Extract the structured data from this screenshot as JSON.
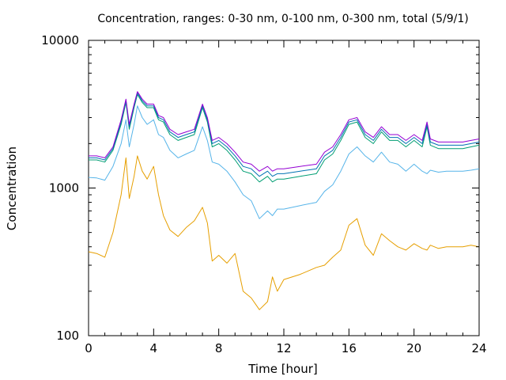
{
  "chart_data": {
    "type": "line",
    "title": "Concentration, ranges: 0-30 nm, 0-100 nm, 0-300 nm, total (5/9/1)",
    "xlabel": "Time [hour]",
    "ylabel": "Concentration",
    "xlim": [
      0,
      24
    ],
    "ylim": [
      100,
      10000
    ],
    "y_scale": "log",
    "grid": false,
    "x_ticks": [
      0,
      4,
      8,
      12,
      16,
      20,
      24
    ],
    "x_tick_labels": [
      "0",
      "4",
      "8",
      "12",
      "16",
      "20",
      "24"
    ],
    "y_ticks": [
      100,
      1000,
      10000
    ],
    "y_tick_labels": [
      "100",
      "1000",
      "10000"
    ],
    "x": [
      0.0,
      0.5,
      1.0,
      1.5,
      2.0,
      2.3,
      2.5,
      2.8,
      3.0,
      3.3,
      3.6,
      4.0,
      4.3,
      4.6,
      5.0,
      5.5,
      6.0,
      6.5,
      7.0,
      7.3,
      7.6,
      8.0,
      8.5,
      9.0,
      9.5,
      10.0,
      10.5,
      11.0,
      11.3,
      11.6,
      12.0,
      13.0,
      14.0,
      14.5,
      15.0,
      15.5,
      16.0,
      16.5,
      17.0,
      17.5,
      18.0,
      18.5,
      19.0,
      19.5,
      20.0,
      20.5,
      20.8,
      21.0,
      21.5,
      22.0,
      23.0,
      23.5,
      24.0
    ],
    "series": [
      {
        "color": "#e69f00",
        "values": [
          370,
          360,
          340,
          500,
          900,
          1600,
          850,
          1200,
          1650,
          1300,
          1150,
          1400,
          900,
          650,
          520,
          470,
          540,
          600,
          740,
          580,
          320,
          350,
          310,
          360,
          200,
          180,
          150,
          170,
          250,
          200,
          240,
          260,
          290,
          300,
          340,
          380,
          560,
          620,
          410,
          350,
          490,
          440,
          400,
          380,
          420,
          390,
          380,
          410,
          390,
          400,
          400,
          410,
          400
        ]
      },
      {
        "color": "#56b4e9",
        "values": [
          1180,
          1170,
          1130,
          1400,
          2000,
          2900,
          1900,
          2700,
          3600,
          3000,
          2700,
          2900,
          2300,
          2200,
          1800,
          1600,
          1700,
          1800,
          2600,
          2100,
          1500,
          1450,
          1300,
          1100,
          900,
          820,
          620,
          700,
          650,
          720,
          720,
          760,
          800,
          950,
          1050,
          1300,
          1700,
          1900,
          1650,
          1500,
          1750,
          1500,
          1450,
          1300,
          1450,
          1300,
          1250,
          1320,
          1280,
          1300,
          1300,
          1320,
          1350
        ]
      },
      {
        "color": "#009e73",
        "values": [
          1550,
          1550,
          1500,
          1800,
          2700,
          3800,
          2500,
          3500,
          4300,
          3800,
          3500,
          3500,
          2900,
          2800,
          2300,
          2100,
          2200,
          2300,
          3500,
          2800,
          1900,
          2000,
          1800,
          1550,
          1300,
          1250,
          1100,
          1200,
          1100,
          1150,
          1150,
          1200,
          1250,
          1550,
          1700,
          2100,
          2700,
          2800,
          2200,
          2000,
          2400,
          2100,
          2100,
          1900,
          2100,
          1900,
          2600,
          1950,
          1850,
          1850,
          1850,
          1900,
          1950
        ]
      },
      {
        "color": "#0072b2",
        "values": [
          1600,
          1600,
          1550,
          1850,
          2800,
          3900,
          2600,
          3600,
          4400,
          3900,
          3600,
          3600,
          3000,
          2900,
          2400,
          2200,
          2300,
          2400,
          3600,
          2900,
          2000,
          2100,
          1900,
          1650,
          1400,
          1350,
          1200,
          1300,
          1200,
          1250,
          1250,
          1300,
          1350,
          1650,
          1800,
          2200,
          2800,
          2900,
          2300,
          2100,
          2500,
          2200,
          2200,
          2000,
          2200,
          2000,
          2700,
          2050,
          1950,
          1950,
          1950,
          2000,
          2050
        ]
      },
      {
        "color": "#9400d3",
        "values": [
          1650,
          1650,
          1600,
          1900,
          2900,
          4000,
          2700,
          3700,
          4500,
          4000,
          3700,
          3700,
          3100,
          3000,
          2500,
          2300,
          2400,
          2500,
          3700,
          3000,
          2100,
          2200,
          2000,
          1750,
          1500,
          1450,
          1300,
          1400,
          1300,
          1350,
          1350,
          1400,
          1450,
          1750,
          1900,
          2300,
          2900,
          3000,
          2400,
          2200,
          2600,
          2300,
          2300,
          2100,
          2300,
          2100,
          2800,
          2150,
          2050,
          2050,
          2050,
          2100,
          2150
        ]
      }
    ]
  }
}
